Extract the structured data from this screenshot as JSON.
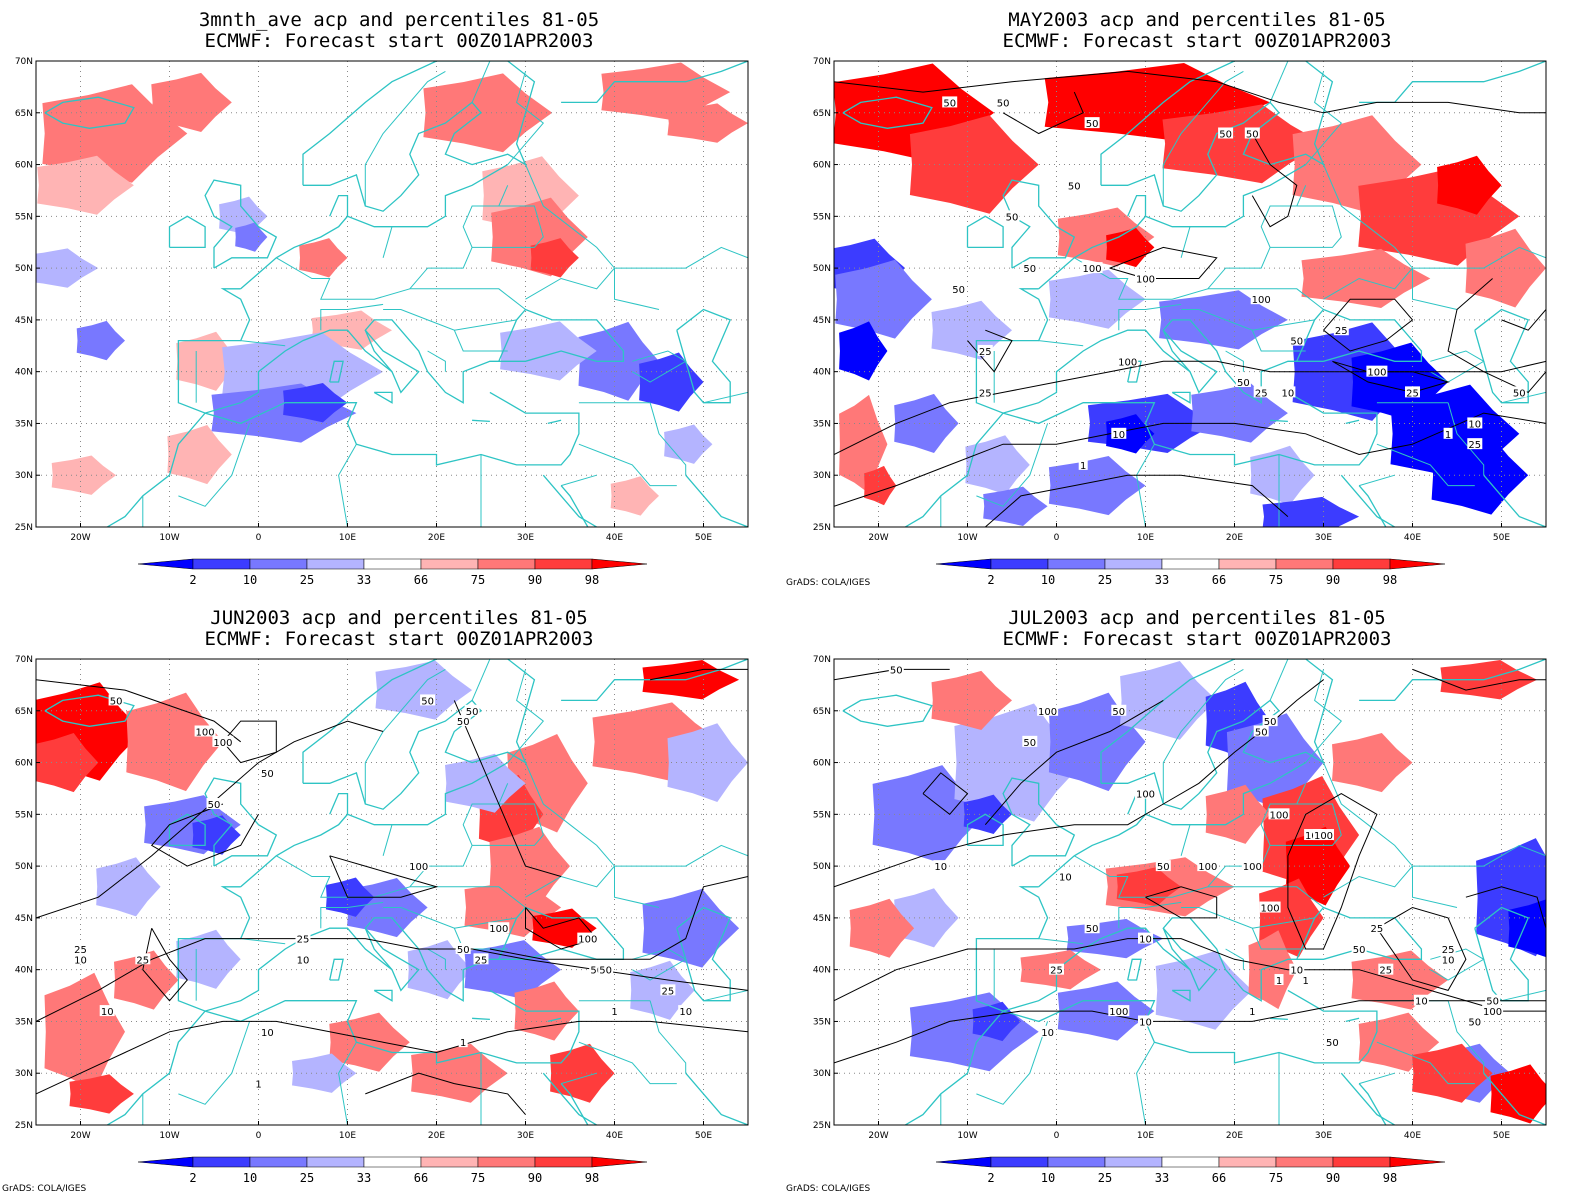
{
  "panels": [
    {
      "id": "p1",
      "title_line1": "3mnth_ave acp and percentiles 81-05",
      "title_line2": "ECMWF: Forecast start 00Z01APR2003",
      "credit": "",
      "contour_labels": []
    },
    {
      "id": "p2",
      "title_line1": "MAY2003 acp and percentiles 81-05",
      "title_line2": "ECMWF: Forecast start 00Z01APR2003",
      "credit": "GrADS: COLA/IGES",
      "contour_labels": [
        "50",
        "50",
        "50",
        "50",
        "50",
        "50",
        "50",
        "100",
        "50",
        "50",
        "100",
        "100",
        "25",
        "25",
        "50",
        "100",
        "25",
        "100",
        "50",
        "25",
        "25",
        "10",
        "10",
        "1",
        "1",
        "10",
        "25",
        "50"
      ]
    },
    {
      "id": "p3",
      "title_line1": "JUN2003 acp and percentiles 81-05",
      "title_line2": "ECMWF: Forecast start 00Z01APR2003",
      "credit": "GrADS: COLA/IGES",
      "contour_labels": [
        "50",
        "50",
        "100",
        "100",
        "50",
        "50",
        "50",
        "50",
        "100",
        "25",
        "10",
        "25",
        "50",
        "10",
        "100",
        "25",
        "50",
        "100",
        "50",
        "25",
        "10",
        "1",
        "1",
        "1",
        "10",
        "50",
        "25",
        "10"
      ]
    },
    {
      "id": "p4",
      "title_line1": "JUL2003 acp and percentiles 81-05",
      "title_line2": "ECMWF: Forecast start 00Z01APR2003",
      "credit": "GrADS: COLA/IGES",
      "contour_labels": [
        "50",
        "100",
        "50",
        "50",
        "50",
        "50",
        "100",
        "100",
        "100",
        "100",
        "50",
        "100",
        "100",
        "100",
        "10",
        "50",
        "10",
        "10",
        "50",
        "25",
        "10",
        "25",
        "1",
        "1",
        "1",
        "10",
        "10",
        "100",
        "50",
        "25",
        "10",
        "25",
        "10",
        "50",
        "100",
        "50"
      ]
    }
  ],
  "axes": {
    "lat_labels": [
      "70N",
      "65N",
      "60N",
      "55N",
      "50N",
      "45N",
      "40N",
      "35N",
      "30N",
      "25N"
    ],
    "lon_labels": [
      "20W",
      "10W",
      "0",
      "10E",
      "20E",
      "30E",
      "40E",
      "50E"
    ]
  },
  "colorbar": {
    "labels": [
      "2",
      "10",
      "25",
      "33",
      "66",
      "75",
      "90",
      "98"
    ],
    "colors": [
      "#0000ff",
      "#3c3cff",
      "#7878ff",
      "#b4b4ff",
      "#ffffff",
      "#ffb4b4",
      "#ff7878",
      "#ff3c3c",
      "#ff0000"
    ]
  },
  "colors": {
    "coast": "#2ec4c4",
    "contour": "#000000",
    "grid": "#8a8a8a"
  }
}
